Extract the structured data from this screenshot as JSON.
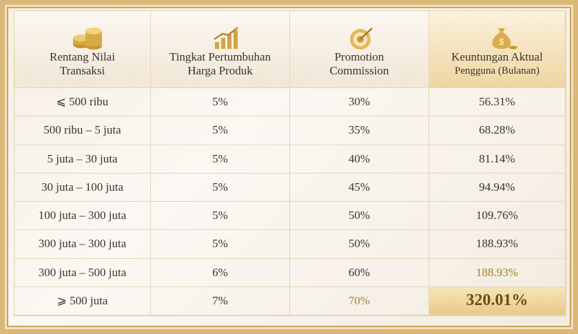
{
  "table": {
    "header": [
      [
        "Rentang Nilai",
        "Transaksi"
      ],
      [
        "Tingkat Pertumbuhan",
        "Harga Produk"
      ],
      [
        "Promotion",
        "Commission"
      ],
      [
        "Keuntungan Aktual",
        "Pengguna (Bulanan)"
      ]
    ],
    "rows": [
      [
        "⩽ 500 ribu",
        "5%",
        "30%",
        "56.31%"
      ],
      [
        "500 ribu – 5 juta",
        "5%",
        "35%",
        "68.28%"
      ],
      [
        "5 juta – 30 juta",
        "5%",
        "40%",
        "81.14%"
      ],
      [
        "30 juta – 100 juta",
        "5%",
        "45%",
        "94.94%"
      ],
      [
        "100 juta – 300 juta",
        "5%",
        "50%",
        "109.76%"
      ],
      [
        "300 juta – 300 juta",
        "5%",
        "50%",
        "188.93%"
      ],
      [
        "300 juta – 500 juta",
        "6%",
        "60%",
        "188.93%"
      ],
      [
        "⩾ 500 juta",
        "7%",
        "70%",
        "320.01%"
      ]
    ]
  }
}
